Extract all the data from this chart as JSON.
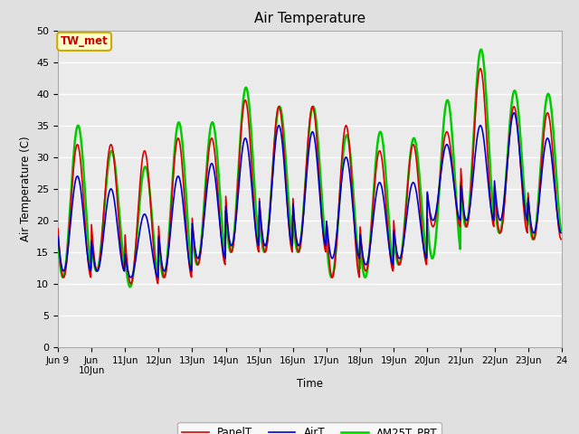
{
  "title": "Air Temperature",
  "ylabel": "Air Temperature (C)",
  "xlabel": "Time",
  "annotation_text": "TW_met",
  "annotation_bg": "#ffffcc",
  "annotation_border": "#ccaa00",
  "annotation_text_color": "#cc0000",
  "ylim": [
    0,
    50
  ],
  "yticks": [
    0,
    5,
    10,
    15,
    20,
    25,
    30,
    35,
    40,
    45,
    50
  ],
  "xtick_labels": [
    "Jun 9",
    "Jun 10Jun",
    "11Jun",
    "12Jun",
    "13Jun",
    "14Jun",
    "15Jun",
    "16Jun",
    "17Jun",
    "18Jun",
    "19Jun",
    "20Jun",
    "21Jun",
    "22Jun",
    "23Jun",
    "24"
  ],
  "bg_color": "#e0e0e0",
  "plot_bg": "#ebebeb",
  "grid_color": "#ffffff",
  "line_colors": {
    "PanelT": "#dd0000",
    "AirT": "#0000cc",
    "AM25T_PRT": "#00cc00"
  },
  "line_widths": {
    "PanelT": 1.2,
    "AirT": 1.2,
    "AM25T_PRT": 1.8
  },
  "num_days": 15,
  "points_per_day": 48,
  "day_mins_panel": [
    11,
    12,
    10,
    11,
    13,
    15,
    15,
    15,
    11,
    12,
    13,
    19,
    19,
    18,
    17
  ],
  "day_maxs_panel": [
    32,
    32,
    31,
    33,
    33,
    39,
    38,
    38,
    35,
    31,
    32,
    34,
    44,
    38,
    37
  ],
  "day_mins_air": [
    12,
    12,
    11,
    12,
    14,
    16,
    16,
    16,
    14,
    13,
    14,
    20,
    20,
    20,
    18
  ],
  "day_maxs_air": [
    27,
    25,
    21,
    27,
    29,
    33,
    35,
    34,
    30,
    26,
    26,
    32,
    35,
    37,
    33
  ],
  "day_mins_am25": [
    11,
    12,
    9.5,
    11,
    13,
    15,
    15,
    15,
    11,
    11,
    13,
    14,
    19,
    18,
    17
  ],
  "day_maxs_am25": [
    35,
    31,
    28.5,
    35.5,
    35.5,
    41,
    38,
    38,
    33.5,
    34,
    33,
    39,
    47,
    40.5,
    40
  ]
}
